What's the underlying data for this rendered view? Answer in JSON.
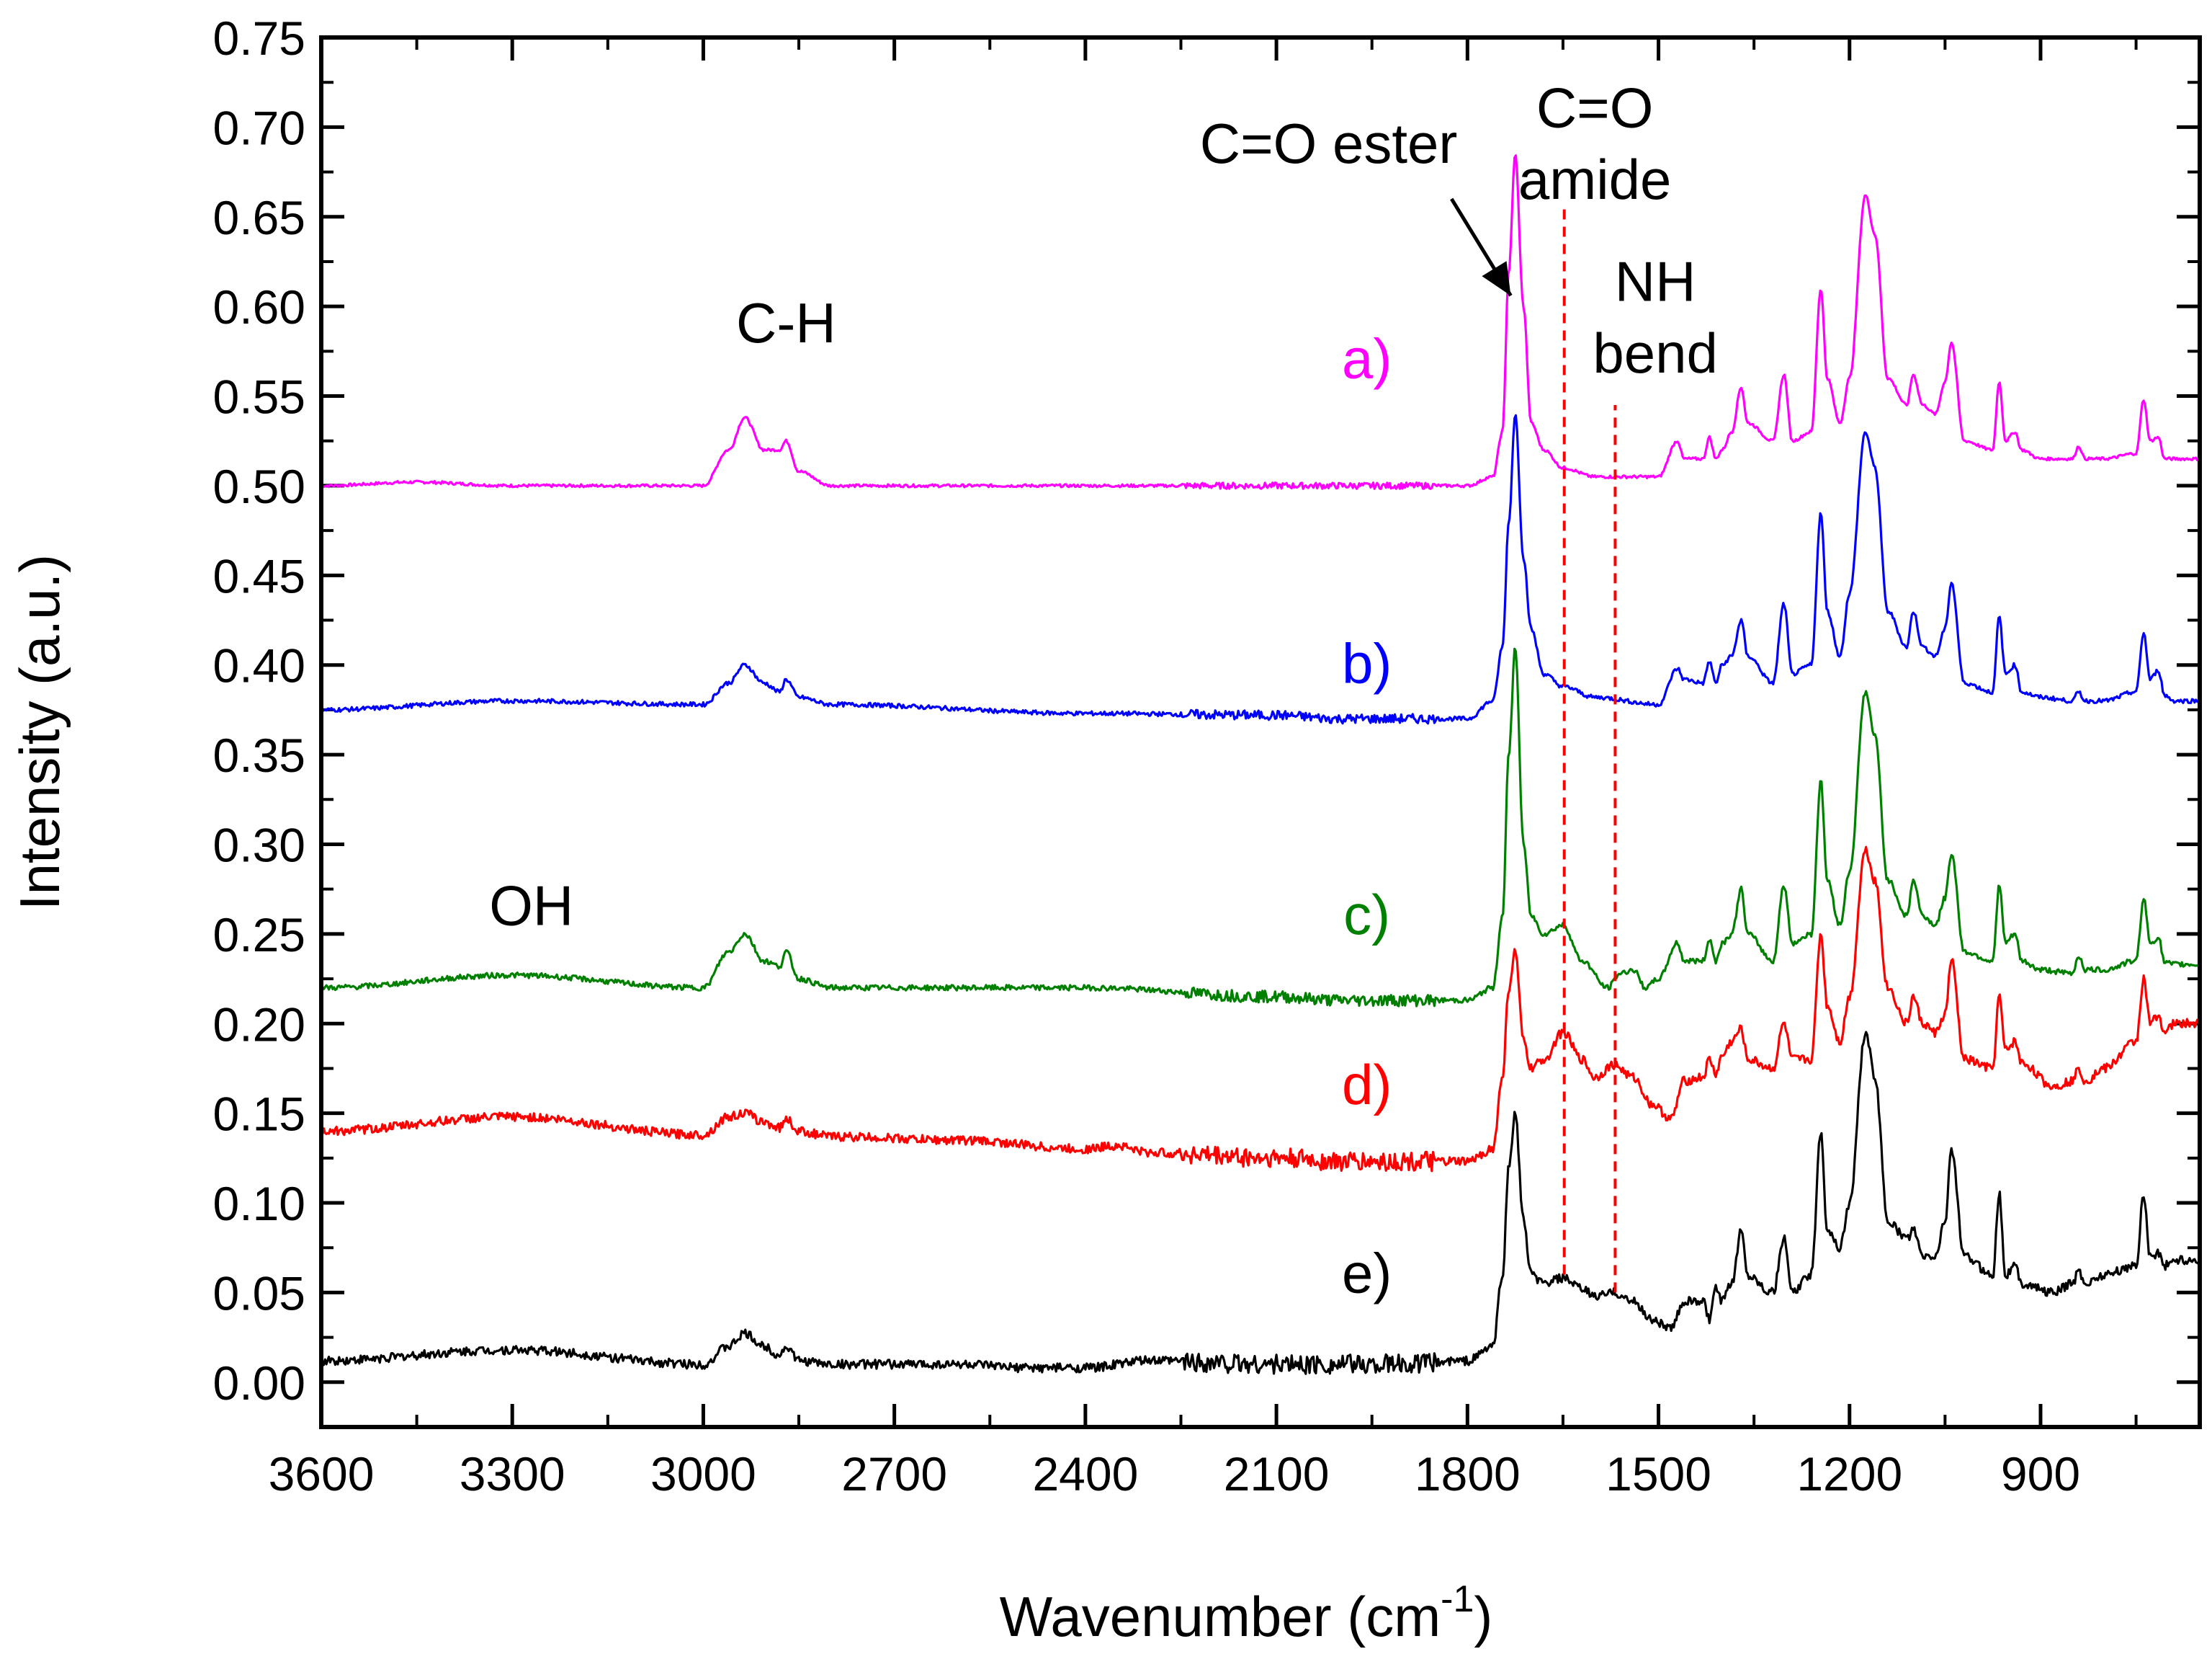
{
  "chart_data": {
    "type": "line",
    "title": "",
    "xlabel": "Wavenumber (cm",
    "xlabel_sup": "-1",
    "xlabel_close": ")",
    "ylabel": "Intensity (a.u.)",
    "xlim": [
      3600,
      650
    ],
    "x_reversed": true,
    "ylim": [
      -0.025,
      0.75
    ],
    "x_major_ticks": [
      3600,
      3300,
      3000,
      2700,
      2400,
      2100,
      1800,
      1500,
      1200,
      900
    ],
    "x_tick_labels": [
      "3600",
      "3300",
      "3000",
      "2700",
      "2400",
      "2100",
      "1800",
      "1500",
      "1200",
      "900"
    ],
    "y_major_ticks": [
      0.0,
      0.05,
      0.1,
      0.15,
      0.2,
      0.25,
      0.3,
      0.35,
      0.4,
      0.45,
      0.5,
      0.55,
      0.6,
      0.65,
      0.7,
      0.75
    ],
    "y_tick_labels": [
      "0.00",
      "0.05",
      "0.10",
      "0.15",
      "0.20",
      "0.25",
      "0.30",
      "0.35",
      "0.40",
      "0.45",
      "0.50",
      "0.55",
      "0.60",
      "0.65",
      "0.70",
      "0.75"
    ],
    "grid": false,
    "series": [
      {
        "name": "a)",
        "color": "#ff00ff",
        "baseline": 0.5,
        "noise": 0.0008,
        "x": [
          3600,
          3450,
          3300,
          3000,
          2960,
          2935,
          2905,
          2880,
          2870,
          2850,
          2800,
          2400,
          1800,
          1760,
          1745,
          1735,
          1725,
          1712,
          1700,
          1680,
          1650,
          1600,
          1500,
          1470,
          1460,
          1430,
          1420,
          1410,
          1400,
          1385,
          1370,
          1360,
          1320,
          1303,
          1290,
          1260,
          1245,
          1235,
          1215,
          1200,
          1175,
          1160,
          1140,
          1110,
          1100,
          1085,
          1065,
          1050,
          1040,
          1020,
          975,
          965,
          955,
          940,
          930,
          900,
          850,
          840,
          830,
          800,
          750,
          738,
          728,
          715,
          705,
          690,
          650
        ],
        "y": [
          0.5,
          0.502,
          0.5,
          0.5,
          0.52,
          0.538,
          0.52,
          0.52,
          0.525,
          0.508,
          0.5,
          0.5,
          0.5,
          0.505,
          0.53,
          0.62,
          0.685,
          0.6,
          0.535,
          0.52,
          0.51,
          0.505,
          0.505,
          0.525,
          0.515,
          0.515,
          0.527,
          0.515,
          0.52,
          0.53,
          0.555,
          0.535,
          0.525,
          0.562,
          0.525,
          0.53,
          0.61,
          0.56,
          0.535,
          0.56,
          0.662,
          0.64,
          0.56,
          0.545,
          0.562,
          0.545,
          0.54,
          0.558,
          0.58,
          0.525,
          0.52,
          0.558,
          0.525,
          0.53,
          0.52,
          0.515,
          0.515,
          0.522,
          0.515,
          0.515,
          0.518,
          0.548,
          0.525,
          0.527,
          0.515,
          0.515,
          0.515
        ]
      },
      {
        "name": "b)",
        "color": "#0000ff",
        "baseline": 0.375,
        "noise": 0.0012,
        "x": [
          3600,
          3300,
          3000,
          2960,
          2935,
          2905,
          2880,
          2870,
          2850,
          2800,
          2400,
          2100,
          2000,
          1800,
          1760,
          1745,
          1735,
          1725,
          1712,
          1700,
          1680,
          1650,
          1600,
          1500,
          1470,
          1460,
          1430,
          1420,
          1410,
          1400,
          1385,
          1370,
          1360,
          1320,
          1303,
          1290,
          1260,
          1245,
          1235,
          1215,
          1200,
          1175,
          1160,
          1140,
          1110,
          1100,
          1085,
          1065,
          1050,
          1040,
          1020,
          975,
          965,
          955,
          940,
          930,
          900,
          850,
          840,
          830,
          800,
          750,
          738,
          728,
          715,
          705,
          690,
          650
        ],
        "y": [
          0.375,
          0.38,
          0.378,
          0.39,
          0.4,
          0.39,
          0.385,
          0.392,
          0.382,
          0.378,
          0.373,
          0.372,
          0.37,
          0.37,
          0.38,
          0.41,
          0.48,
          0.54,
          0.46,
          0.42,
          0.395,
          0.388,
          0.382,
          0.378,
          0.398,
          0.392,
          0.39,
          0.402,
          0.39,
          0.4,
          0.405,
          0.425,
          0.405,
          0.39,
          0.434,
          0.395,
          0.4,
          0.485,
          0.43,
          0.405,
          0.44,
          0.53,
          0.51,
          0.43,
          0.41,
          0.43,
          0.41,
          0.405,
          0.42,
          0.446,
          0.39,
          0.385,
          0.427,
          0.395,
          0.4,
          0.385,
          0.382,
          0.38,
          0.385,
          0.38,
          0.38,
          0.385,
          0.418,
          0.392,
          0.397,
          0.383,
          0.38,
          0.38
        ]
      },
      {
        "name": "c)",
        "color": "#008000",
        "baseline": 0.22,
        "noise": 0.0015,
        "x": [
          3600,
          3300,
          3000,
          2960,
          2935,
          2905,
          2880,
          2870,
          2850,
          2800,
          2400,
          2100,
          2000,
          1800,
          1760,
          1745,
          1735,
          1725,
          1712,
          1700,
          1680,
          1650,
          1620,
          1580,
          1560,
          1540,
          1520,
          1500,
          1470,
          1460,
          1430,
          1420,
          1410,
          1400,
          1385,
          1370,
          1360,
          1320,
          1303,
          1290,
          1260,
          1245,
          1235,
          1215,
          1200,
          1175,
          1160,
          1140,
          1110,
          1100,
          1085,
          1065,
          1050,
          1040,
          1020,
          975,
          965,
          955,
          940,
          930,
          900,
          850,
          840,
          830,
          800,
          750,
          738,
          728,
          715,
          705,
          690,
          650
        ],
        "y": [
          0.22,
          0.227,
          0.22,
          0.24,
          0.25,
          0.235,
          0.232,
          0.24,
          0.225,
          0.22,
          0.22,
          0.215,
          0.213,
          0.213,
          0.22,
          0.26,
          0.35,
          0.41,
          0.3,
          0.26,
          0.25,
          0.255,
          0.235,
          0.22,
          0.228,
          0.23,
          0.22,
          0.225,
          0.245,
          0.235,
          0.235,
          0.247,
          0.235,
          0.245,
          0.25,
          0.275,
          0.25,
          0.235,
          0.277,
          0.245,
          0.25,
          0.335,
          0.28,
          0.255,
          0.285,
          0.385,
          0.36,
          0.28,
          0.26,
          0.28,
          0.26,
          0.255,
          0.27,
          0.295,
          0.24,
          0.235,
          0.277,
          0.245,
          0.25,
          0.235,
          0.23,
          0.228,
          0.238,
          0.23,
          0.23,
          0.235,
          0.27,
          0.245,
          0.248,
          0.234,
          0.233,
          0.233
        ]
      },
      {
        "name": "d)",
        "color": "#ff0000",
        "baseline": 0.14,
        "noise": 0.0025,
        "x": [
          3600,
          3300,
          3000,
          2960,
          2935,
          2905,
          2880,
          2870,
          2850,
          2800,
          2600,
          2400,
          2350,
          2300,
          2100,
          2000,
          1900,
          1800,
          1760,
          1745,
          1735,
          1725,
          1712,
          1700,
          1680,
          1650,
          1620,
          1600,
          1570,
          1540,
          1510,
          1480,
          1460,
          1430,
          1420,
          1410,
          1400,
          1385,
          1370,
          1360,
          1320,
          1303,
          1290,
          1260,
          1245,
          1235,
          1215,
          1200,
          1175,
          1160,
          1140,
          1110,
          1100,
          1085,
          1065,
          1050,
          1040,
          1020,
          975,
          965,
          955,
          940,
          930,
          880,
          850,
          840,
          830,
          800,
          750,
          738,
          728,
          715,
          705,
          690,
          650
        ],
        "y": [
          0.14,
          0.148,
          0.138,
          0.148,
          0.15,
          0.145,
          0.142,
          0.147,
          0.14,
          0.137,
          0.135,
          0.13,
          0.132,
          0.128,
          0.125,
          0.123,
          0.123,
          0.123,
          0.13,
          0.17,
          0.22,
          0.24,
          0.19,
          0.175,
          0.18,
          0.195,
          0.18,
          0.17,
          0.177,
          0.17,
          0.155,
          0.147,
          0.168,
          0.17,
          0.18,
          0.172,
          0.182,
          0.19,
          0.197,
          0.18,
          0.175,
          0.2,
          0.18,
          0.18,
          0.25,
          0.21,
          0.19,
          0.215,
          0.297,
          0.28,
          0.22,
          0.2,
          0.215,
          0.2,
          0.195,
          0.205,
          0.235,
          0.18,
          0.175,
          0.215,
          0.185,
          0.19,
          0.178,
          0.165,
          0.168,
          0.175,
          0.168,
          0.175,
          0.19,
          0.225,
          0.2,
          0.205,
          0.195,
          0.2,
          0.2
        ]
      },
      {
        "name": "e)",
        "color": "#000000",
        "baseline": 0.01,
        "noise": 0.0025,
        "x": [
          3600,
          3300,
          3000,
          2960,
          2935,
          2905,
          2880,
          2870,
          2850,
          2800,
          2600,
          2500,
          2400,
          2300,
          2100,
          2000,
          1900,
          1800,
          1760,
          1745,
          1735,
          1725,
          1712,
          1700,
          1680,
          1650,
          1620,
          1600,
          1570,
          1540,
          1510,
          1480,
          1460,
          1430,
          1420,
          1410,
          1400,
          1385,
          1370,
          1360,
          1320,
          1303,
          1290,
          1260,
          1245,
          1235,
          1215,
          1200,
          1175,
          1160,
          1140,
          1110,
          1100,
          1085,
          1065,
          1050,
          1040,
          1020,
          975,
          965,
          955,
          940,
          930,
          880,
          850,
          840,
          830,
          800,
          750,
          738,
          728,
          715,
          705,
          690,
          650
        ],
        "y": [
          0.012,
          0.018,
          0.01,
          0.02,
          0.027,
          0.02,
          0.015,
          0.02,
          0.012,
          0.01,
          0.01,
          0.008,
          0.008,
          0.012,
          0.01,
          0.01,
          0.01,
          0.012,
          0.02,
          0.06,
          0.12,
          0.15,
          0.09,
          0.06,
          0.055,
          0.058,
          0.052,
          0.048,
          0.05,
          0.045,
          0.035,
          0.03,
          0.045,
          0.045,
          0.035,
          0.052,
          0.045,
          0.055,
          0.085,
          0.06,
          0.05,
          0.08,
          0.05,
          0.06,
          0.14,
          0.085,
          0.075,
          0.1,
          0.195,
          0.17,
          0.09,
          0.08,
          0.085,
          0.07,
          0.07,
          0.09,
          0.13,
          0.07,
          0.06,
          0.105,
          0.06,
          0.065,
          0.055,
          0.05,
          0.055,
          0.062,
          0.055,
          0.06,
          0.065,
          0.105,
          0.07,
          0.072,
          0.065,
          0.068,
          0.068
        ]
      }
    ],
    "series_labels": [
      {
        "text": "a)",
        "x": 1958,
        "y": 0.56,
        "color": "#ff00ff"
      },
      {
        "text": "b)",
        "x": 1958,
        "y": 0.39,
        "color": "#0000ff"
      },
      {
        "text": "c)",
        "x": 1958,
        "y": 0.25,
        "color": "#008000"
      },
      {
        "text": "d)",
        "x": 1958,
        "y": 0.155,
        "color": "#ff0000"
      },
      {
        "text": "e)",
        "x": 1958,
        "y": 0.05,
        "color": "#000000"
      }
    ],
    "annotations": [
      {
        "text": "C-H",
        "x": 2870,
        "y": 0.58
      },
      {
        "text": "OH",
        "x": 3270,
        "y": 0.255
      },
      {
        "text": "C=O ester",
        "x": 2018,
        "y": 0.68
      },
      {
        "text": "C=O",
        "x": 1600,
        "y": 0.7
      },
      {
        "text": "amide",
        "x": 1600,
        "y": 0.66
      },
      {
        "text": "NH",
        "x": 1505,
        "y": 0.603
      },
      {
        "text": "bend",
        "x": 1505,
        "y": 0.563
      }
    ],
    "arrow": {
      "from": [
        1825,
        0.66
      ],
      "to": [
        1732,
        0.606
      ]
    },
    "reference_lines": [
      {
        "x": 1648,
        "y_from": 0.06,
        "y_to": 0.655,
        "color": "#ff0000"
      },
      {
        "x": 1568,
        "y_from": 0.05,
        "y_to": 0.545,
        "color": "#ff0000"
      }
    ]
  }
}
